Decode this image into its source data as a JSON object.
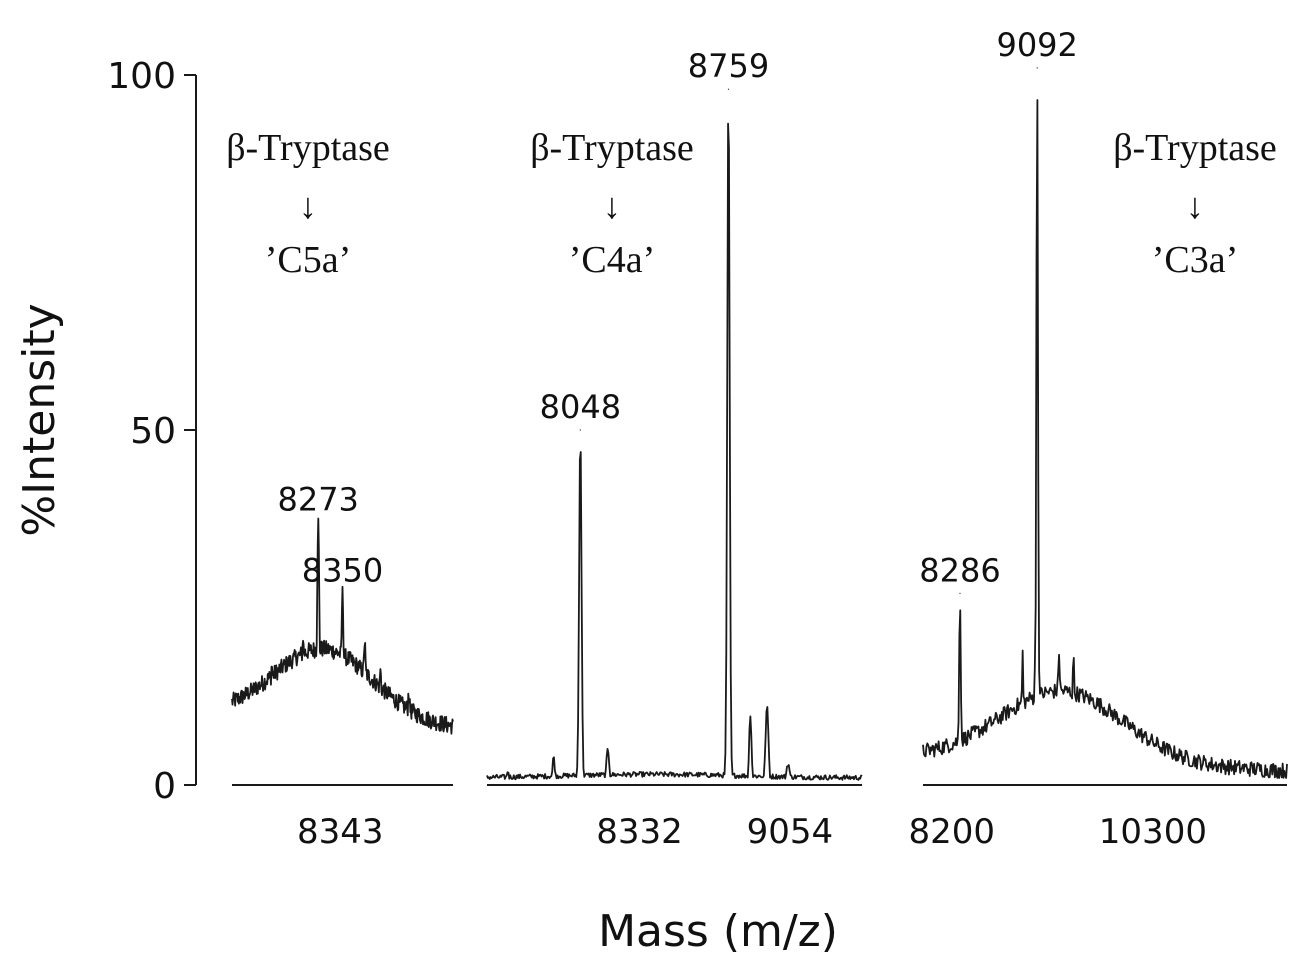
{
  "chart_data": {
    "type": "line",
    "ylabel": "%Intensity",
    "xlabel": "Mass (m/z)",
    "ylim": [
      0,
      100
    ],
    "yticks": [
      {
        "value": 0,
        "label": "0"
      },
      {
        "value": 50,
        "label": "50"
      },
      {
        "value": 100,
        "label": "100"
      }
    ],
    "colors": {
      "line": "#1a1a1a",
      "axis": "#1a1a1a",
      "text": "#111111"
    },
    "panels": [
      {
        "annotation": {
          "enzyme": "β-Tryptase",
          "arrow": "↓",
          "product": "’C5a’"
        },
        "xlim": [
          8000,
          8700
        ],
        "xticks": [
          {
            "value": 8343,
            "label": "8343"
          }
        ],
        "peaks": [
          {
            "x": 8273,
            "y": 37,
            "label": "8273"
          },
          {
            "x": 8350,
            "y": 27,
            "label": "8350"
          }
        ],
        "baseline": {
          "start": 10,
          "end": 8,
          "center": 8290,
          "spread": 220,
          "hump": 10
        },
        "extra_peaks": [
          {
            "x": 8126,
            "y": 17,
            "w": 6
          },
          {
            "x": 8156,
            "y": 15,
            "w": 6
          },
          {
            "x": 8225,
            "y": 21,
            "w": 6
          },
          {
            "x": 8420,
            "y": 20,
            "w": 8
          },
          {
            "x": 8470,
            "y": 16,
            "w": 8
          },
          {
            "x": 8560,
            "y": 13,
            "w": 8
          }
        ],
        "noise": 1.2,
        "peak_width": 5,
        "segment": 0
      },
      {
        "annotation": {
          "enzyme": "β-Tryptase",
          "arrow": "↓",
          "product": "’C4a’"
        },
        "xlim": [
          7600,
          9400
        ],
        "xticks": [
          {
            "value": 8332,
            "label": "8332"
          },
          {
            "value": 9054,
            "label": "9054"
          }
        ],
        "peaks": [
          {
            "x": 8048,
            "y": 50,
            "label": "8048"
          },
          {
            "x": 8759,
            "y": 98,
            "label": "8759"
          }
        ],
        "baseline": {
          "start": 1,
          "end": 1,
          "center": 8400,
          "spread": 600,
          "hump": 0.5
        },
        "extra_peaks": [
          {
            "x": 7700,
            "y": 2,
            "w": 8
          },
          {
            "x": 7920,
            "y": 4,
            "w": 8
          },
          {
            "x": 8180,
            "y": 5,
            "w": 10
          },
          {
            "x": 8864,
            "y": 10,
            "w": 8
          },
          {
            "x": 8944,
            "y": 11,
            "w": 10
          },
          {
            "x": 9045,
            "y": 3,
            "w": 12
          }
        ],
        "noise": 0.35,
        "peak_width": 8,
        "segment": 1
      },
      {
        "annotation": {
          "enzyme": "β-Tryptase",
          "arrow": "↓",
          "product": "’C3a’"
        },
        "xlim": [
          7900,
          11700
        ],
        "xticks": [
          {
            "value": 8200,
            "label": "8200"
          },
          {
            "value": 10300,
            "label": "10300"
          }
        ],
        "peaks": [
          {
            "x": 8286,
            "y": 27,
            "label": "8286"
          },
          {
            "x": 9092,
            "y": 101,
            "label": "9092"
          }
        ],
        "baseline": {
          "start": 4,
          "end": 2,
          "center": 9350,
          "spread": 900,
          "hump": 10
        },
        "extra_peaks": [
          {
            "x": 8940,
            "y": 19,
            "w": 14
          },
          {
            "x": 9090,
            "y": 30,
            "w": 30
          },
          {
            "x": 9320,
            "y": 19,
            "w": 20
          },
          {
            "x": 9470,
            "y": 18,
            "w": 18
          }
        ],
        "noise": 1.1,
        "peak_width": 12,
        "segment": 2
      }
    ]
  }
}
